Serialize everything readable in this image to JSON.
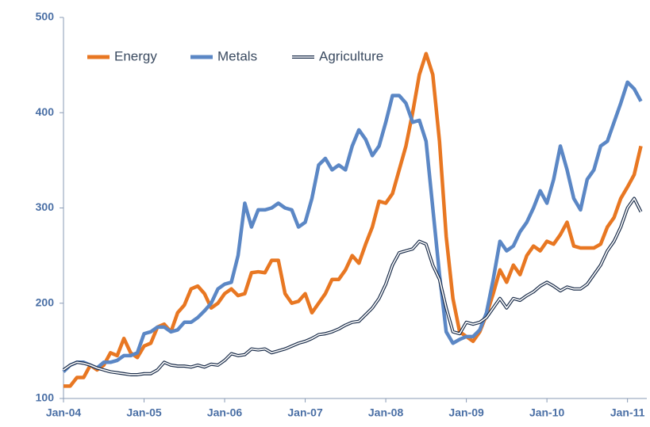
{
  "chart_data": {
    "type": "line",
    "categories": [
      "Jan-04",
      null,
      null,
      null,
      null,
      null,
      null,
      null,
      null,
      null,
      null,
      null,
      "Jan-05",
      null,
      null,
      null,
      null,
      null,
      null,
      null,
      null,
      null,
      null,
      null,
      "Jan-06",
      null,
      null,
      null,
      null,
      null,
      null,
      null,
      null,
      null,
      null,
      null,
      "Jan-07",
      null,
      null,
      null,
      null,
      null,
      null,
      null,
      null,
      null,
      null,
      null,
      "Jan-08",
      null,
      null,
      null,
      null,
      null,
      null,
      null,
      null,
      null,
      null,
      null,
      "Jan-09",
      null,
      null,
      null,
      null,
      null,
      null,
      null,
      null,
      null,
      null,
      null,
      "Jan-10",
      null,
      null,
      null,
      null,
      null,
      null,
      null,
      null,
      null,
      null,
      null,
      "Jan-11",
      null,
      null
    ],
    "series": [
      {
        "name": "Energy",
        "color": "#e87722",
        "values": [
          113,
          113,
          122,
          122,
          135,
          130,
          135,
          148,
          145,
          163,
          148,
          143,
          155,
          158,
          175,
          178,
          170,
          190,
          198,
          215,
          218,
          210,
          195,
          200,
          210,
          215,
          208,
          210,
          232,
          233,
          232,
          245,
          245,
          210,
          200,
          202,
          210,
          190,
          200,
          210,
          225,
          225,
          235,
          250,
          242,
          262,
          280,
          307,
          305,
          315,
          340,
          365,
          400,
          440,
          462,
          440,
          370,
          270,
          205,
          170,
          165,
          160,
          170,
          188,
          210,
          235,
          222,
          240,
          230,
          250,
          260,
          255,
          265,
          262,
          272,
          285,
          260,
          258,
          258,
          258,
          262,
          280,
          290,
          310,
          322,
          335,
          365
        ]
      },
      {
        "name": "Metals",
        "color": "#5b87c5",
        "values": [
          128,
          135,
          138,
          138,
          135,
          132,
          138,
          138,
          140,
          145,
          145,
          148,
          168,
          170,
          175,
          175,
          170,
          172,
          180,
          180,
          185,
          192,
          200,
          215,
          220,
          222,
          250,
          305,
          280,
          298,
          298,
          300,
          305,
          300,
          298,
          280,
          285,
          310,
          345,
          352,
          340,
          345,
          340,
          365,
          382,
          372,
          355,
          365,
          390,
          418,
          418,
          410,
          390,
          392,
          370,
          300,
          230,
          170,
          158,
          162,
          165,
          165,
          172,
          190,
          225,
          265,
          255,
          260,
          275,
          285,
          300,
          318,
          305,
          330,
          365,
          340,
          310,
          298,
          330,
          340,
          365,
          370,
          390,
          410,
          432,
          425,
          412
        ]
      },
      {
        "name": "Agriculture",
        "color": "#1b2d4a",
        "values": [
          130,
          135,
          138,
          137,
          135,
          132,
          130,
          128,
          127,
          126,
          125,
          125,
          126,
          126,
          130,
          138,
          135,
          134,
          134,
          133,
          135,
          133,
          136,
          135,
          140,
          147,
          145,
          146,
          152,
          151,
          152,
          148,
          150,
          152,
          155,
          158,
          160,
          163,
          167,
          168,
          170,
          173,
          177,
          180,
          181,
          188,
          195,
          205,
          220,
          240,
          253,
          255,
          257,
          265,
          262,
          240,
          225,
          195,
          170,
          168,
          180,
          178,
          180,
          185,
          195,
          205,
          195,
          205,
          203,
          208,
          212,
          218,
          222,
          218,
          213,
          217,
          215,
          215,
          220,
          230,
          240,
          255,
          265,
          280,
          300,
          310,
          296
        ]
      }
    ],
    "ylim": [
      100,
      500
    ],
    "yticks": [
      100,
      200,
      300,
      400,
      500
    ],
    "legend": "upper left"
  }
}
